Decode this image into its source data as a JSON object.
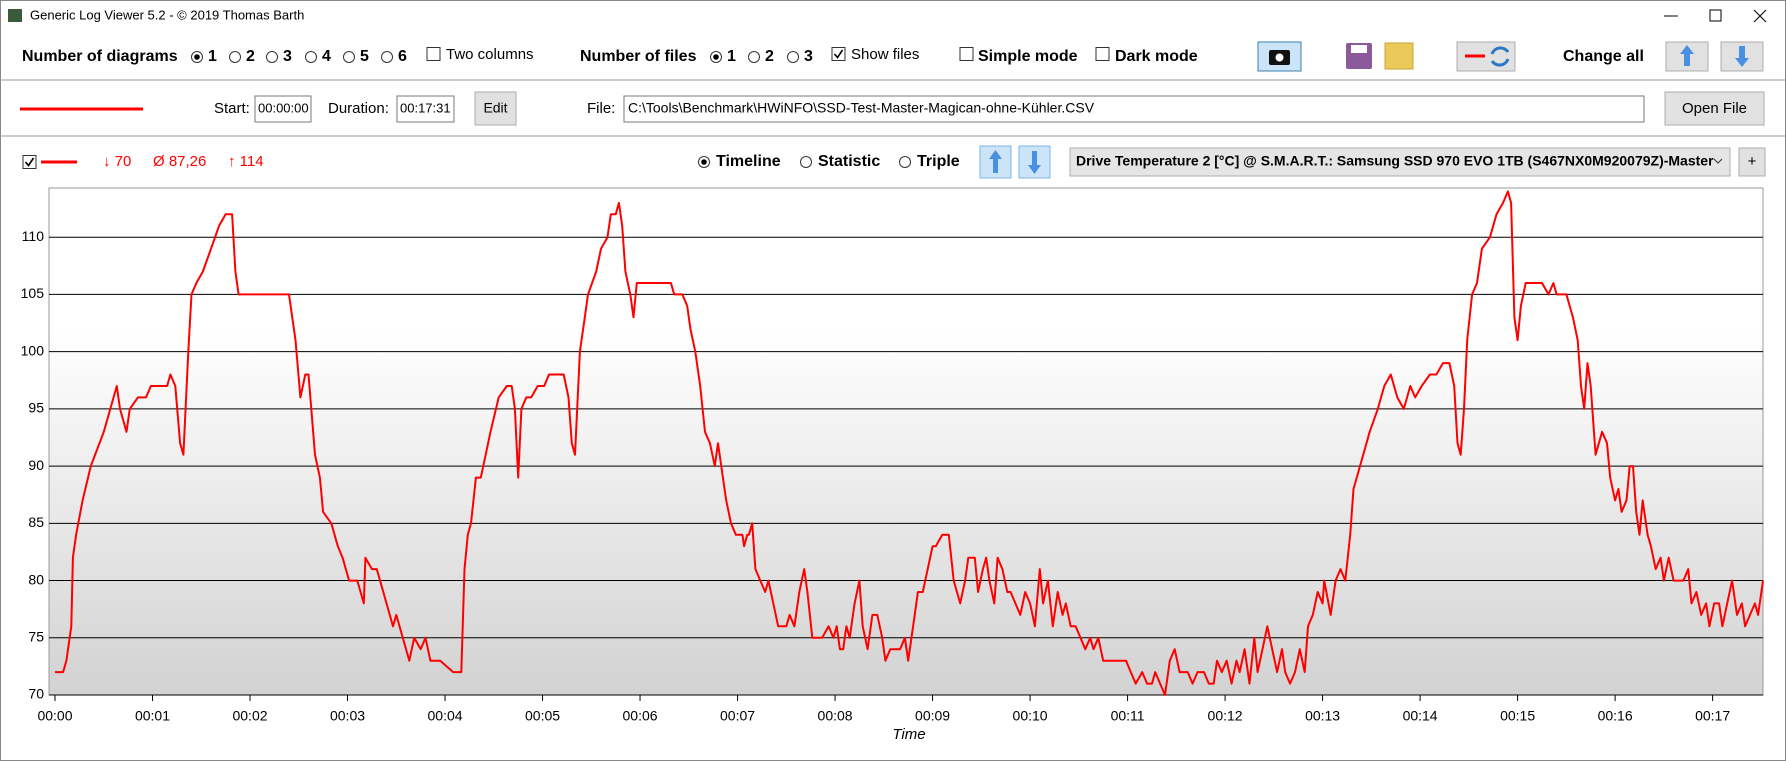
{
  "window": {
    "title": "Generic Log Viewer 5.2 - © 2019 Thomas Barth"
  },
  "toolbar": {
    "diagrams_label": "Number of diagrams",
    "diagram_options": [
      "1",
      "2",
      "3",
      "4",
      "5",
      "6"
    ],
    "two_columns": "Two columns",
    "files_label": "Number of files",
    "file_options": [
      "1",
      "2",
      "3"
    ],
    "show_files": "Show files",
    "simple_mode": "Simple mode",
    "dark_mode": "Dark mode",
    "change_all": "Change all"
  },
  "file_row": {
    "start_label": "Start:",
    "start": "00:00:00",
    "duration_label": "Duration:",
    "duration": "00:17:31",
    "edit": "Edit",
    "file_label": "File:",
    "file_path": "C:\\Tools\\Benchmark\\HWiNFO\\SSD-Test-Master-Magican-ohne-Kühler.CSV",
    "open_file": "Open File"
  },
  "diagram_controls": {
    "min": "↓ 70",
    "avg": "Ø 87,26",
    "max": "↑ 114",
    "views": [
      "Timeline",
      "Statistic",
      "Triple"
    ],
    "sensor": "Drive Temperature 2 [°C] @ S.M.A.R.T.: Samsung SSD 970 EVO 1TB (S467NX0M920079Z)-Master",
    "add": "+"
  },
  "chart_data": {
    "type": "line",
    "x_label": "Time",
    "color": "#ff0000",
    "grid": true,
    "x": [
      0,
      5,
      7,
      10,
      11,
      13,
      17,
      22,
      30,
      38,
      40,
      44,
      46,
      51,
      56,
      59,
      69,
      71,
      74,
      77,
      79,
      82,
      84,
      87,
      91,
      96,
      101,
      105,
      109,
      111,
      113,
      144,
      148,
      151,
      154,
      156,
      160,
      163,
      165,
      170,
      174,
      177,
      181,
      186,
      190,
      191,
      195,
      198,
      202,
      208,
      210,
      214,
      218,
      221,
      225,
      228,
      231,
      233,
      237,
      245,
      250,
      252,
      254,
      256,
      259,
      262,
      265,
      268,
      273,
      278,
      281,
      283,
      285,
      287,
      290,
      293,
      297,
      301,
      304,
      313,
      316,
      318,
      320,
      323,
      326,
      328,
      333,
      336,
      340,
      342,
      345,
      347,
      349,
      351,
      354,
      356,
      358,
      363,
      374,
      379,
      381,
      386,
      389,
      391,
      394,
      397,
      400,
      403,
      406,
      408,
      411,
      413,
      416,
      419,
      423,
      424,
      426,
      427,
      429,
      431,
      434,
      437,
      439,
      442,
      445,
      450,
      452,
      455,
      458,
      461,
      463,
      466,
      472,
      476,
      479,
      481,
      483,
      485,
      487,
      489,
      492,
      495,
      497,
      500,
      503,
      506,
      509,
      511,
      514,
      517,
      520,
      523,
      525,
      528,
      531,
      534,
      537,
      540,
      542,
      546,
      550,
      553,
      557,
      560,
      562,
      566,
      568,
      571,
      573,
      575,
      578,
      580,
      583,
      586,
      588,
      591,
      594,
      597,
      600,
      603,
      606,
      608,
      611,
      614,
      617,
      620,
      622,
      625,
      628,
      631,
      634,
      637,
      639,
      642,
      645,
      650,
      659,
      662,
      665,
      669,
      672,
      675,
      677,
      680,
      683,
      686,
      689,
      692,
      697,
      700,
      703,
      707,
      710,
      713,
      715,
      718,
      721,
      724,
      727,
      729,
      732,
      735,
      738,
      740,
      743,
      746,
      749,
      752,
      755,
      757,
      760,
      763,
      766,
      769,
      771,
      774,
      777,
      780,
      781,
      785,
      788,
      791,
      794,
      797,
      799,
      803,
      809,
      814,
      818,
      822,
      826,
      830,
      834,
      837,
      841,
      846,
      850,
      854,
      858,
      861,
      863,
      865,
      867,
      869,
      872,
      875,
      878,
      883,
      887,
      891,
      894,
      896,
      898,
      900,
      902,
      905,
      915,
      919,
      922,
      924,
      930,
      934,
      937,
      939,
      941,
      943,
      945,
      948,
      952,
      955,
      957,
      960,
      962,
      964,
      967,
      969,
      971,
      973,
      975,
      977,
      980,
      982,
      985,
      988,
      990,
      993,
      996,
      1002,
      1005,
      1007,
      1010,
      1013,
      1016,
      1018,
      1021,
      1024,
      1026,
      1029,
      1032,
      1035,
      1038,
      1040,
      1043,
      1046,
      1048,
      1051
    ],
    "values": [
      72,
      72,
      73,
      76,
      82,
      84,
      87,
      90,
      93,
      97,
      95,
      93,
      95,
      96,
      96,
      97,
      97,
      98,
      97,
      92,
      91,
      100,
      105,
      106,
      107,
      109,
      111,
      112,
      112,
      107,
      105,
      105,
      101,
      96,
      98,
      98,
      91,
      89,
      86,
      85,
      83,
      82,
      80,
      80,
      78,
      82,
      81,
      81,
      79,
      76,
      77,
      75,
      73,
      75,
      74,
      75,
      73,
      73,
      73,
      72,
      72,
      81,
      84,
      85,
      89,
      89,
      91,
      93,
      96,
      97,
      97,
      95,
      89,
      95,
      96,
      96,
      97,
      97,
      98,
      98,
      96,
      92,
      91,
      100,
      103,
      105,
      107,
      109,
      110,
      112,
      112,
      113,
      111,
      107,
      105,
      103,
      106,
      106,
      106,
      106,
      105,
      105,
      104,
      102,
      100,
      97,
      93,
      92,
      90,
      92,
      89,
      87,
      85,
      84,
      84,
      83,
      84,
      84,
      85,
      81,
      80,
      79,
      80,
      78,
      76,
      76,
      77,
      76,
      79,
      81,
      79,
      75,
      75,
      76,
      75,
      76,
      74,
      74,
      76,
      75,
      78,
      80,
      76,
      74,
      77,
      77,
      75,
      73,
      74,
      74,
      74,
      75,
      73,
      76,
      79,
      79,
      81,
      83,
      83,
      84,
      84,
      80,
      78,
      80,
      82,
      82,
      79,
      81,
      82,
      80,
      78,
      82,
      81,
      79,
      79,
      78,
      77,
      79,
      78,
      76,
      81,
      78,
      80,
      76,
      79,
      77,
      78,
      76,
      76,
      75,
      74,
      75,
      74,
      75,
      73,
      73,
      73,
      72,
      71,
      72,
      71,
      71,
      72,
      71,
      70,
      73,
      74,
      72,
      72,
      71,
      72,
      72,
      71,
      71,
      73,
      72,
      73,
      71,
      73,
      72,
      74,
      71,
      75,
      72,
      74,
      76,
      74,
      72,
      74,
      72,
      71,
      72,
      74,
      72,
      76,
      77,
      79,
      78,
      80,
      77,
      80,
      81,
      80,
      84,
      88,
      90,
      93,
      95,
      97,
      98,
      96,
      95,
      97,
      96,
      97,
      98,
      98,
      99,
      99,
      97,
      92,
      91,
      95,
      101,
      105,
      106,
      109,
      110,
      112,
      113,
      114,
      113,
      103,
      101,
      104,
      106,
      106,
      105,
      106,
      105,
      105,
      103,
      101,
      97,
      95,
      99,
      97,
      91,
      93,
      92,
      89,
      87,
      88,
      86,
      87,
      90,
      90,
      86,
      84,
      87,
      84,
      83,
      81,
      82,
      80,
      82,
      80,
      80,
      81,
      78,
      79,
      77,
      78,
      76,
      78,
      78,
      76,
      78,
      80,
      77,
      78,
      76,
      77,
      78,
      77,
      80
    ],
    "xlim": [
      0,
      1051
    ],
    "ylim": [
      70,
      114.3
    ],
    "yticks": [
      70,
      75,
      80,
      85,
      90,
      95,
      100,
      105,
      110
    ],
    "xticks": [
      {
        "value": 0,
        "label": "00:00"
      },
      {
        "value": 60,
        "label": "00:01"
      },
      {
        "value": 120,
        "label": "00:02"
      },
      {
        "value": 180,
        "label": "00:03"
      },
      {
        "value": 240,
        "label": "00:04"
      },
      {
        "value": 300,
        "label": "00:05"
      },
      {
        "value": 360,
        "label": "00:06"
      },
      {
        "value": 420,
        "label": "00:07"
      },
      {
        "value": 480,
        "label": "00:08"
      },
      {
        "value": 540,
        "label": "00:09"
      },
      {
        "value": 600,
        "label": "00:10"
      },
      {
        "value": 660,
        "label": "00:11"
      },
      {
        "value": 720,
        "label": "00:12"
      },
      {
        "value": 780,
        "label": "00:13"
      },
      {
        "value": 840,
        "label": "00:14"
      },
      {
        "value": 900,
        "label": "00:15"
      },
      {
        "value": 960,
        "label": "00:16"
      },
      {
        "value": 1020,
        "label": "00:17"
      }
    ]
  }
}
